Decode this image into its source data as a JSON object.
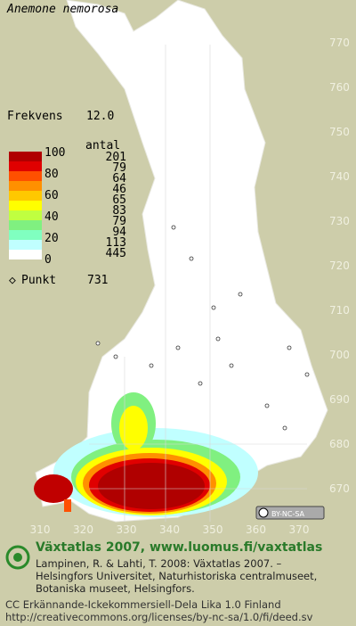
{
  "title": "Anemone nemorosa",
  "frequency": {
    "label": "Frekvens",
    "value": "12.0"
  },
  "legend": {
    "scale_labels": [
      100,
      80,
      60,
      40,
      20,
      0
    ],
    "count_header": "antal",
    "counts": [
      201,
      79,
      64,
      46,
      65,
      83,
      79,
      94,
      113,
      445
    ],
    "point_label": "Punkt",
    "point_count": 731
  },
  "grid": {
    "northing": [
      770,
      760,
      750,
      740,
      730,
      720,
      710,
      700,
      690,
      680,
      670
    ],
    "easting": [
      310,
      320,
      330,
      340,
      350,
      360,
      370
    ]
  },
  "license_badge": "BY-NC-SA",
  "footer": {
    "heading": "Växtatlas 2007, www.luomus.fi/vaxtatlas",
    "citation": [
      "Lampinen, R. & Lahti, T. 2008: Växtatlas 2007. –",
      "Helsingfors Universitet, Naturhistoriska centralmuseet,",
      "Botaniska museet, Helsingfors."
    ],
    "license": [
      "CC Erkännande-Ickekommersiell-Dela Lika 1.0 Finland",
      "http://creativecommons.org/licenses/by-nc-sa/1.0/fi/deed.sv"
    ]
  }
}
